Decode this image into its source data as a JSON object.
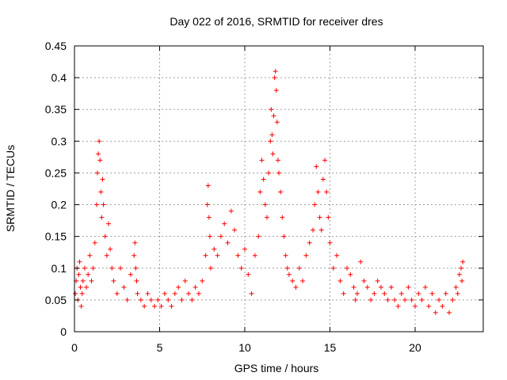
{
  "chart_data": {
    "type": "scatter",
    "title": "Day 022 of 2016, SRMTID for receiver dres",
    "xlabel": "GPS time / hours",
    "ylabel": "SRMTID / TECUs",
    "xlim": [
      0,
      24
    ],
    "ylim": [
      0,
      0.45
    ],
    "xticks": [
      0,
      5,
      10,
      15,
      20
    ],
    "xtick_labels": [
      "0",
      "5",
      "10",
      "15",
      "20"
    ],
    "yticks": [
      0,
      0.05,
      0.1,
      0.15,
      0.2,
      0.25,
      0.3,
      0.35,
      0.4,
      0.45
    ],
    "ytick_labels": [
      "0",
      "0.05",
      "0.1",
      "0.15",
      "0.2",
      "0.25",
      "0.3",
      "0.35",
      "0.4",
      "0.45"
    ],
    "grid": true,
    "marker": "+",
    "color": "#ff0000",
    "series": [
      {
        "name": "SRMTID",
        "x": [
          0.05,
          0.1,
          0.15,
          0.2,
          0.25,
          0.3,
          0.35,
          0.4,
          0.45,
          0.5,
          0.6,
          0.7,
          0.8,
          0.9,
          1.0,
          1.1,
          1.2,
          1.3,
          1.35,
          1.4,
          1.45,
          1.5,
          1.55,
          1.6,
          1.65,
          1.7,
          1.8,
          1.9,
          2.0,
          2.1,
          2.2,
          2.3,
          2.5,
          2.7,
          2.9,
          3.1,
          3.3,
          3.5,
          3.55,
          3.6,
          3.65,
          3.7,
          3.9,
          4.1,
          4.3,
          4.5,
          4.7,
          4.9,
          5.1,
          5.3,
          5.5,
          5.7,
          5.9,
          6.1,
          6.3,
          6.5,
          6.7,
          6.9,
          7.1,
          7.3,
          7.5,
          7.7,
          7.8,
          7.85,
          7.9,
          7.95,
          8.0,
          8.2,
          8.4,
          8.6,
          8.8,
          9.0,
          9.2,
          9.4,
          9.6,
          9.8,
          10.0,
          10.2,
          10.4,
          10.6,
          10.8,
          10.9,
          11.0,
          11.1,
          11.2,
          11.3,
          11.4,
          11.5,
          11.55,
          11.6,
          11.65,
          11.7,
          11.75,
          11.8,
          11.85,
          11.9,
          11.95,
          12.0,
          12.1,
          12.2,
          12.3,
          12.4,
          12.5,
          12.6,
          12.8,
          13.0,
          13.2,
          13.4,
          13.6,
          13.8,
          14.0,
          14.1,
          14.2,
          14.3,
          14.4,
          14.5,
          14.6,
          14.7,
          14.8,
          14.9,
          15.0,
          15.2,
          15.4,
          15.6,
          15.8,
          16.0,
          16.2,
          16.4,
          16.5,
          16.6,
          16.8,
          17.0,
          17.2,
          17.4,
          17.6,
          17.8,
          18.0,
          18.2,
          18.4,
          18.6,
          18.8,
          19.0,
          19.2,
          19.4,
          19.6,
          19.8,
          20.0,
          20.2,
          20.4,
          20.6,
          20.8,
          21.0,
          21.2,
          21.4,
          21.6,
          21.8,
          22.0,
          22.2,
          22.4,
          22.5,
          22.6,
          22.7,
          22.75,
          22.8
        ],
        "y": [
          0.06,
          0.08,
          0.1,
          0.05,
          0.09,
          0.11,
          0.07,
          0.04,
          0.06,
          0.08,
          0.1,
          0.07,
          0.09,
          0.12,
          0.08,
          0.1,
          0.14,
          0.2,
          0.25,
          0.28,
          0.3,
          0.27,
          0.22,
          0.18,
          0.24,
          0.2,
          0.15,
          0.12,
          0.17,
          0.13,
          0.1,
          0.08,
          0.06,
          0.1,
          0.07,
          0.05,
          0.09,
          0.12,
          0.14,
          0.1,
          0.08,
          0.06,
          0.05,
          0.04,
          0.06,
          0.05,
          0.04,
          0.05,
          0.04,
          0.06,
          0.05,
          0.04,
          0.06,
          0.07,
          0.05,
          0.08,
          0.06,
          0.05,
          0.07,
          0.06,
          0.08,
          0.12,
          0.2,
          0.23,
          0.18,
          0.15,
          0.1,
          0.13,
          0.12,
          0.15,
          0.17,
          0.14,
          0.19,
          0.16,
          0.12,
          0.1,
          0.13,
          0.09,
          0.06,
          0.12,
          0.15,
          0.22,
          0.27,
          0.24,
          0.2,
          0.18,
          0.25,
          0.3,
          0.35,
          0.31,
          0.28,
          0.34,
          0.4,
          0.41,
          0.38,
          0.33,
          0.27,
          0.25,
          0.22,
          0.18,
          0.15,
          0.12,
          0.1,
          0.09,
          0.08,
          0.07,
          0.1,
          0.08,
          0.12,
          0.14,
          0.16,
          0.2,
          0.26,
          0.22,
          0.18,
          0.16,
          0.24,
          0.27,
          0.22,
          0.18,
          0.14,
          0.1,
          0.12,
          0.08,
          0.06,
          0.1,
          0.09,
          0.07,
          0.05,
          0.06,
          0.11,
          0.08,
          0.07,
          0.05,
          0.06,
          0.08,
          0.07,
          0.06,
          0.05,
          0.07,
          0.05,
          0.04,
          0.06,
          0.05,
          0.07,
          0.05,
          0.04,
          0.06,
          0.05,
          0.07,
          0.04,
          0.06,
          0.03,
          0.05,
          0.04,
          0.06,
          0.03,
          0.05,
          0.07,
          0.06,
          0.09,
          0.1,
          0.08,
          0.11
        ]
      }
    ]
  }
}
